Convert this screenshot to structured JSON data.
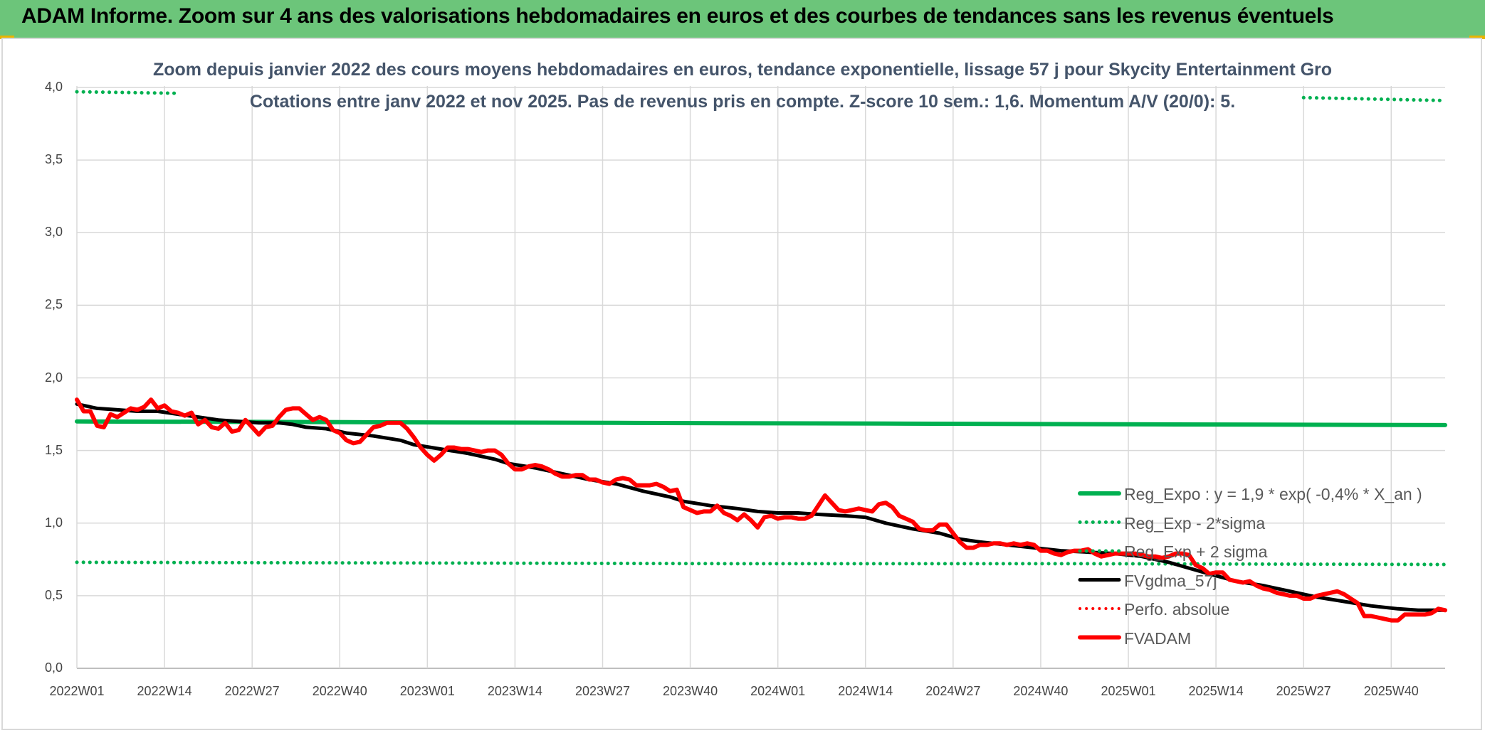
{
  "header": {
    "title": "ADAM Informe. Zoom sur 4 ans des valorisations hebdomadaires en euros et des courbes de tendances sans les revenus éventuels",
    "background_color": "#6cc57a"
  },
  "chart_data": {
    "type": "line",
    "title": "Zoom depuis janvier 2022 des cours moyens hebdomadaires en euros, tendance exponentielle, lissage 57 j pour Skycity Entertainment Gro",
    "subtitle": "Cotations entre janv 2022 et nov 2025. Pas de revenus pris en compte. Z-score 10 sem.: 1,6. Momentum A/V (20/0): 5.",
    "xlabel": "",
    "ylabel": "",
    "ylim": [
      0,
      4.0
    ],
    "yticks": [
      "0,0",
      "0,5",
      "1,0",
      "1,5",
      "2,0",
      "2,5",
      "3,0",
      "3,5",
      "4,0"
    ],
    "x_range_weeks": [
      0,
      203
    ],
    "xtick_labels": [
      "2022W01",
      "2022W14",
      "2022W27",
      "2022W40",
      "2023W01",
      "2023W14",
      "2023W27",
      "2023W40",
      "2024W01",
      "2024W14",
      "2024W27",
      "2024W40",
      "2025W01",
      "2025W14",
      "2025W27",
      "2025W40"
    ],
    "xtick_weeks": [
      0,
      13,
      26,
      39,
      52,
      65,
      78,
      91,
      104,
      117,
      130,
      143,
      156,
      169,
      182,
      195
    ],
    "grid": true,
    "legend_position": "bottom-right",
    "series": [
      {
        "name": "Reg_Expo : y = 1,9 * exp( -0,4% *  X_an )",
        "color": "#00b050",
        "style": "solid",
        "width": 6,
        "points": [
          [
            0,
            1.7
          ],
          [
            40,
            1.695
          ],
          [
            80,
            1.69
          ],
          [
            120,
            1.685
          ],
          [
            160,
            1.68
          ],
          [
            203,
            1.675
          ]
        ]
      },
      {
        "name": "Reg_Exp - 2*sigma",
        "color": "#00b050",
        "style": "dotted",
        "width": 5,
        "points": [
          [
            0,
            0.73
          ],
          [
            50,
            0.725
          ],
          [
            100,
            0.72
          ],
          [
            150,
            0.72
          ],
          [
            203,
            0.715
          ]
        ]
      },
      {
        "name": "Reg_Exp + 2 sigma",
        "color": "#00b050",
        "style": "dotted",
        "width": 5,
        "points": [
          [
            0,
            3.97
          ],
          [
            15,
            3.96
          ]
        ],
        "points_2": [
          [
            182,
            3.93
          ],
          [
            203,
            3.91
          ]
        ]
      },
      {
        "name": "FVgdma_57j",
        "color": "#000000",
        "style": "solid",
        "width": 5,
        "points": [
          [
            0,
            1.82
          ],
          [
            3,
            1.79
          ],
          [
            6,
            1.78
          ],
          [
            9,
            1.77
          ],
          [
            12,
            1.77
          ],
          [
            15,
            1.75
          ],
          [
            18,
            1.73
          ],
          [
            21,
            1.71
          ],
          [
            24,
            1.7
          ],
          [
            27,
            1.69
          ],
          [
            30,
            1.69
          ],
          [
            32,
            1.68
          ],
          [
            34,
            1.66
          ],
          [
            37,
            1.65
          ],
          [
            40,
            1.62
          ],
          [
            44,
            1.6
          ],
          [
            48,
            1.57
          ],
          [
            50,
            1.54
          ],
          [
            54,
            1.51
          ],
          [
            58,
            1.48
          ],
          [
            62,
            1.44
          ],
          [
            64,
            1.41
          ],
          [
            68,
            1.38
          ],
          [
            72,
            1.34
          ],
          [
            76,
            1.3
          ],
          [
            80,
            1.27
          ],
          [
            84,
            1.22
          ],
          [
            88,
            1.18
          ],
          [
            90,
            1.15
          ],
          [
            94,
            1.12
          ],
          [
            98,
            1.1
          ],
          [
            101,
            1.08
          ],
          [
            104,
            1.07
          ],
          [
            107,
            1.07
          ],
          [
            110,
            1.06
          ],
          [
            114,
            1.05
          ],
          [
            117,
            1.04
          ],
          [
            120,
            1.0
          ],
          [
            124,
            0.96
          ],
          [
            128,
            0.93
          ],
          [
            131,
            0.89
          ],
          [
            134,
            0.87
          ],
          [
            138,
            0.85
          ],
          [
            142,
            0.83
          ],
          [
            146,
            0.81
          ],
          [
            150,
            0.8
          ],
          [
            154,
            0.79
          ],
          [
            158,
            0.77
          ],
          [
            162,
            0.73
          ],
          [
            165,
            0.69
          ],
          [
            168,
            0.65
          ],
          [
            172,
            0.6
          ],
          [
            176,
            0.57
          ],
          [
            180,
            0.53
          ],
          [
            184,
            0.49
          ],
          [
            188,
            0.46
          ],
          [
            192,
            0.43
          ],
          [
            196,
            0.41
          ],
          [
            199,
            0.4
          ],
          [
            203,
            0.4
          ]
        ]
      },
      {
        "name": "Perfo. absolue",
        "color": "#ff0000",
        "style": "dotted",
        "width": 4,
        "points": []
      },
      {
        "name": "FVADAM",
        "color": "#ff0000",
        "style": "solid",
        "width": 6,
        "points": [
          [
            0,
            1.85
          ],
          [
            1,
            1.77
          ],
          [
            2,
            1.77
          ],
          [
            3,
            1.67
          ],
          [
            4,
            1.66
          ],
          [
            5,
            1.75
          ],
          [
            6,
            1.73
          ],
          [
            7,
            1.76
          ],
          [
            8,
            1.79
          ],
          [
            9,
            1.78
          ],
          [
            10,
            1.8
          ],
          [
            11,
            1.85
          ],
          [
            12,
            1.79
          ],
          [
            13,
            1.81
          ],
          [
            14,
            1.77
          ],
          [
            15,
            1.76
          ],
          [
            16,
            1.74
          ],
          [
            17,
            1.76
          ],
          [
            18,
            1.68
          ],
          [
            19,
            1.71
          ],
          [
            20,
            1.66
          ],
          [
            21,
            1.65
          ],
          [
            22,
            1.69
          ],
          [
            23,
            1.63
          ],
          [
            24,
            1.64
          ],
          [
            25,
            1.71
          ],
          [
            26,
            1.66
          ],
          [
            27,
            1.61
          ],
          [
            28,
            1.66
          ],
          [
            29,
            1.67
          ],
          [
            30,
            1.73
          ],
          [
            31,
            1.78
          ],
          [
            32,
            1.79
          ],
          [
            33,
            1.79
          ],
          [
            34,
            1.75
          ],
          [
            35,
            1.71
          ],
          [
            36,
            1.73
          ],
          [
            37,
            1.71
          ],
          [
            38,
            1.64
          ],
          [
            39,
            1.62
          ],
          [
            40,
            1.57
          ],
          [
            41,
            1.55
          ],
          [
            42,
            1.56
          ],
          [
            43,
            1.61
          ],
          [
            44,
            1.66
          ],
          [
            45,
            1.67
          ],
          [
            46,
            1.69
          ],
          [
            47,
            1.69
          ],
          [
            48,
            1.69
          ],
          [
            49,
            1.65
          ],
          [
            50,
            1.59
          ],
          [
            51,
            1.52
          ],
          [
            52,
            1.47
          ],
          [
            53,
            1.43
          ],
          [
            54,
            1.47
          ],
          [
            55,
            1.52
          ],
          [
            56,
            1.52
          ],
          [
            57,
            1.51
          ],
          [
            58,
            1.51
          ],
          [
            59,
            1.5
          ],
          [
            60,
            1.49
          ],
          [
            61,
            1.5
          ],
          [
            62,
            1.5
          ],
          [
            63,
            1.47
          ],
          [
            64,
            1.41
          ],
          [
            65,
            1.37
          ],
          [
            66,
            1.37
          ],
          [
            67,
            1.39
          ],
          [
            68,
            1.4
          ],
          [
            69,
            1.39
          ],
          [
            70,
            1.37
          ],
          [
            71,
            1.34
          ],
          [
            72,
            1.32
          ],
          [
            73,
            1.32
          ],
          [
            74,
            1.33
          ],
          [
            75,
            1.33
          ],
          [
            76,
            1.3
          ],
          [
            77,
            1.3
          ],
          [
            78,
            1.28
          ],
          [
            79,
            1.27
          ],
          [
            80,
            1.3
          ],
          [
            81,
            1.31
          ],
          [
            82,
            1.3
          ],
          [
            83,
            1.26
          ],
          [
            84,
            1.26
          ],
          [
            85,
            1.26
          ],
          [
            86,
            1.27
          ],
          [
            87,
            1.25
          ],
          [
            88,
            1.22
          ],
          [
            89,
            1.23
          ],
          [
            90,
            1.11
          ],
          [
            91,
            1.09
          ],
          [
            92,
            1.07
          ],
          [
            93,
            1.08
          ],
          [
            94,
            1.08
          ],
          [
            95,
            1.12
          ],
          [
            96,
            1.07
          ],
          [
            97,
            1.05
          ],
          [
            98,
            1.02
          ],
          [
            99,
            1.06
          ],
          [
            100,
            1.02
          ],
          [
            101,
            0.97
          ],
          [
            102,
            1.04
          ],
          [
            103,
            1.05
          ],
          [
            104,
            1.03
          ],
          [
            105,
            1.04
          ],
          [
            106,
            1.04
          ],
          [
            107,
            1.03
          ],
          [
            108,
            1.03
          ],
          [
            109,
            1.05
          ],
          [
            110,
            1.12
          ],
          [
            111,
            1.19
          ],
          [
            112,
            1.14
          ],
          [
            113,
            1.09
          ],
          [
            114,
            1.08
          ],
          [
            115,
            1.09
          ],
          [
            116,
            1.1
          ],
          [
            117,
            1.09
          ],
          [
            118,
            1.08
          ],
          [
            119,
            1.13
          ],
          [
            120,
            1.14
          ],
          [
            121,
            1.11
          ],
          [
            122,
            1.05
          ],
          [
            123,
            1.03
          ],
          [
            124,
            1.01
          ],
          [
            125,
            0.96
          ],
          [
            126,
            0.95
          ],
          [
            127,
            0.95
          ],
          [
            128,
            0.99
          ],
          [
            129,
            0.99
          ],
          [
            130,
            0.93
          ],
          [
            131,
            0.87
          ],
          [
            132,
            0.83
          ],
          [
            133,
            0.83
          ],
          [
            134,
            0.85
          ],
          [
            135,
            0.85
          ],
          [
            136,
            0.86
          ],
          [
            137,
            0.86
          ],
          [
            138,
            0.85
          ],
          [
            139,
            0.86
          ],
          [
            140,
            0.85
          ],
          [
            141,
            0.86
          ],
          [
            142,
            0.85
          ],
          [
            143,
            0.81
          ],
          [
            144,
            0.81
          ],
          [
            145,
            0.79
          ],
          [
            146,
            0.78
          ],
          [
            147,
            0.8
          ],
          [
            148,
            0.81
          ],
          [
            149,
            0.81
          ],
          [
            150,
            0.82
          ],
          [
            151,
            0.79
          ],
          [
            152,
            0.77
          ],
          [
            153,
            0.78
          ],
          [
            154,
            0.79
          ],
          [
            155,
            0.79
          ],
          [
            156,
            0.79
          ],
          [
            157,
            0.79
          ],
          [
            158,
            0.78
          ],
          [
            159,
            0.77
          ],
          [
            160,
            0.77
          ],
          [
            161,
            0.76
          ],
          [
            162,
            0.77
          ],
          [
            163,
            0.79
          ],
          [
            164,
            0.79
          ],
          [
            165,
            0.78
          ],
          [
            166,
            0.71
          ],
          [
            167,
            0.69
          ],
          [
            168,
            0.65
          ],
          [
            169,
            0.66
          ],
          [
            170,
            0.66
          ],
          [
            171,
            0.61
          ],
          [
            172,
            0.6
          ],
          [
            173,
            0.59
          ],
          [
            174,
            0.6
          ],
          [
            175,
            0.57
          ],
          [
            176,
            0.55
          ],
          [
            177,
            0.54
          ],
          [
            178,
            0.52
          ],
          [
            179,
            0.51
          ],
          [
            180,
            0.5
          ],
          [
            181,
            0.5
          ],
          [
            182,
            0.48
          ],
          [
            183,
            0.48
          ],
          [
            184,
            0.5
          ],
          [
            185,
            0.51
          ],
          [
            186,
            0.52
          ],
          [
            187,
            0.53
          ],
          [
            188,
            0.51
          ],
          [
            189,
            0.48
          ],
          [
            190,
            0.45
          ],
          [
            191,
            0.36
          ],
          [
            192,
            0.36
          ],
          [
            193,
            0.35
          ],
          [
            194,
            0.34
          ],
          [
            195,
            0.33
          ],
          [
            196,
            0.33
          ],
          [
            197,
            0.37
          ],
          [
            198,
            0.37
          ],
          [
            199,
            0.37
          ],
          [
            200,
            0.37
          ],
          [
            201,
            0.38
          ],
          [
            202,
            0.41
          ],
          [
            203,
            0.4
          ]
        ]
      }
    ]
  }
}
